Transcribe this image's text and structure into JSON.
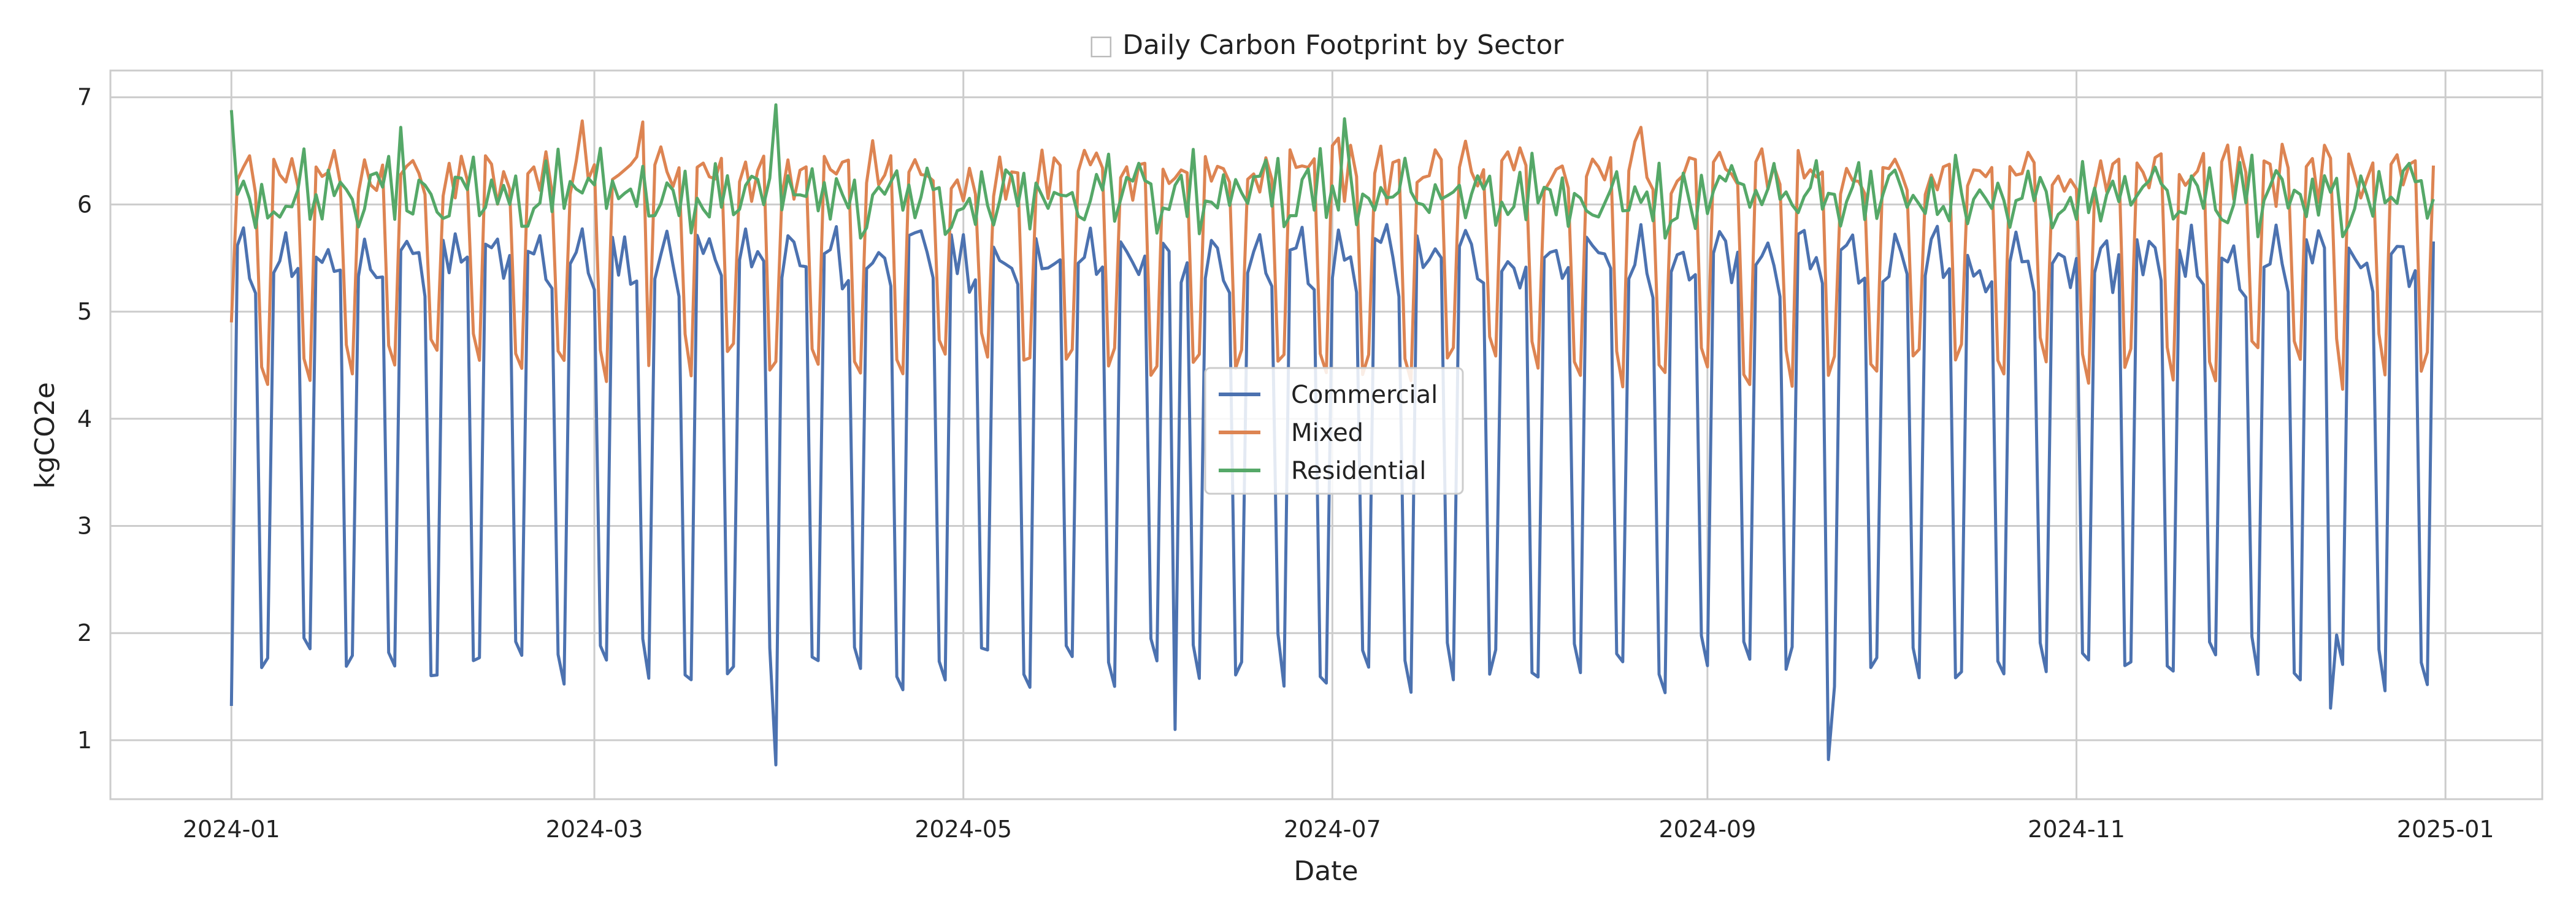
{
  "chart_data": {
    "type": "line",
    "title": "Daily Carbon Footprint by Sector",
    "title_glyph": "□",
    "xlabel": "Date",
    "ylabel": "kgCO2e",
    "x_start": "2024-01-01",
    "x_end": "2024-12-30",
    "xlim": [
      "2023-12-12",
      "2025-01-17"
    ],
    "ylim": [
      0.45,
      7.25
    ],
    "x_ticks": [
      "2024-01",
      "2024-03",
      "2024-05",
      "2024-07",
      "2024-09",
      "2024-11",
      "2025-01"
    ],
    "y_ticks": [
      1,
      2,
      3,
      4,
      5,
      6,
      7
    ],
    "grid": true,
    "legend_position": "center",
    "series": [
      {
        "name": "Commercial",
        "color": "#4c72b0",
        "pattern": {
          "weekday": [
            5.5,
            5.55,
            5.6,
            5.4,
            5.35
          ],
          "weekend": [
            1.8,
            1.65
          ]
        },
        "overrides": {
          "0": 1.32,
          "90": 0.77,
          "264": 0.82,
          "156": 1.1,
          "347": 1.3
        }
      },
      {
        "name": "Mixed",
        "color": "#dd8452",
        "pattern": {
          "weekday": [
            6.3,
            6.4,
            6.2,
            6.35,
            6.3
          ],
          "weekend": [
            4.6,
            4.5
          ]
        },
        "overrides": {
          "0": 4.9,
          "58": 6.78,
          "68": 6.77,
          "182": 6.55,
          "233": 6.72
        }
      },
      {
        "name": "Residential",
        "color": "#55a868",
        "pattern": {
          "weekday": [
            6.0,
            6.05,
            6.1,
            6.2,
            6.0
          ],
          "weekend": [
            6.3,
            5.9
          ]
        },
        "overrides": {
          "0": 6.88,
          "90": 6.93,
          "184": 6.8,
          "28": 6.72
        }
      }
    ]
  }
}
